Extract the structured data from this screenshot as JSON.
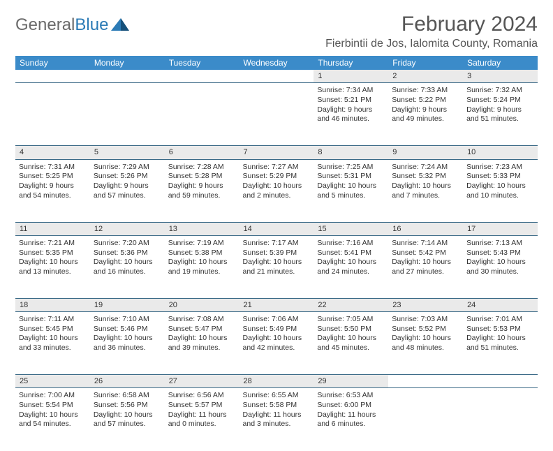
{
  "logo": {
    "word1": "General",
    "word2": "Blue"
  },
  "title": "February 2024",
  "location": "Fierbintii de Jos, Ialomita County, Romania",
  "colors": {
    "header_bg": "#3b8bc9",
    "header_text": "#ffffff",
    "daynum_bg": "#eaeaea",
    "rule": "#3b6a87",
    "logo_gray": "#6a6a6a",
    "logo_blue": "#2c7bb6"
  },
  "weekdays": [
    "Sunday",
    "Monday",
    "Tuesday",
    "Wednesday",
    "Thursday",
    "Friday",
    "Saturday"
  ],
  "grid": [
    [
      null,
      null,
      null,
      null,
      {
        "n": "1",
        "sr": "7:34 AM",
        "ss": "5:21 PM",
        "dl": "9 hours and 46 minutes."
      },
      {
        "n": "2",
        "sr": "7:33 AM",
        "ss": "5:22 PM",
        "dl": "9 hours and 49 minutes."
      },
      {
        "n": "3",
        "sr": "7:32 AM",
        "ss": "5:24 PM",
        "dl": "9 hours and 51 minutes."
      }
    ],
    [
      {
        "n": "4",
        "sr": "7:31 AM",
        "ss": "5:25 PM",
        "dl": "9 hours and 54 minutes."
      },
      {
        "n": "5",
        "sr": "7:29 AM",
        "ss": "5:26 PM",
        "dl": "9 hours and 57 minutes."
      },
      {
        "n": "6",
        "sr": "7:28 AM",
        "ss": "5:28 PM",
        "dl": "9 hours and 59 minutes."
      },
      {
        "n": "7",
        "sr": "7:27 AM",
        "ss": "5:29 PM",
        "dl": "10 hours and 2 minutes."
      },
      {
        "n": "8",
        "sr": "7:25 AM",
        "ss": "5:31 PM",
        "dl": "10 hours and 5 minutes."
      },
      {
        "n": "9",
        "sr": "7:24 AM",
        "ss": "5:32 PM",
        "dl": "10 hours and 7 minutes."
      },
      {
        "n": "10",
        "sr": "7:23 AM",
        "ss": "5:33 PM",
        "dl": "10 hours and 10 minutes."
      }
    ],
    [
      {
        "n": "11",
        "sr": "7:21 AM",
        "ss": "5:35 PM",
        "dl": "10 hours and 13 minutes."
      },
      {
        "n": "12",
        "sr": "7:20 AM",
        "ss": "5:36 PM",
        "dl": "10 hours and 16 minutes."
      },
      {
        "n": "13",
        "sr": "7:19 AM",
        "ss": "5:38 PM",
        "dl": "10 hours and 19 minutes."
      },
      {
        "n": "14",
        "sr": "7:17 AM",
        "ss": "5:39 PM",
        "dl": "10 hours and 21 minutes."
      },
      {
        "n": "15",
        "sr": "7:16 AM",
        "ss": "5:41 PM",
        "dl": "10 hours and 24 minutes."
      },
      {
        "n": "16",
        "sr": "7:14 AM",
        "ss": "5:42 PM",
        "dl": "10 hours and 27 minutes."
      },
      {
        "n": "17",
        "sr": "7:13 AM",
        "ss": "5:43 PM",
        "dl": "10 hours and 30 minutes."
      }
    ],
    [
      {
        "n": "18",
        "sr": "7:11 AM",
        "ss": "5:45 PM",
        "dl": "10 hours and 33 minutes."
      },
      {
        "n": "19",
        "sr": "7:10 AM",
        "ss": "5:46 PM",
        "dl": "10 hours and 36 minutes."
      },
      {
        "n": "20",
        "sr": "7:08 AM",
        "ss": "5:47 PM",
        "dl": "10 hours and 39 minutes."
      },
      {
        "n": "21",
        "sr": "7:06 AM",
        "ss": "5:49 PM",
        "dl": "10 hours and 42 minutes."
      },
      {
        "n": "22",
        "sr": "7:05 AM",
        "ss": "5:50 PM",
        "dl": "10 hours and 45 minutes."
      },
      {
        "n": "23",
        "sr": "7:03 AM",
        "ss": "5:52 PM",
        "dl": "10 hours and 48 minutes."
      },
      {
        "n": "24",
        "sr": "7:01 AM",
        "ss": "5:53 PM",
        "dl": "10 hours and 51 minutes."
      }
    ],
    [
      {
        "n": "25",
        "sr": "7:00 AM",
        "ss": "5:54 PM",
        "dl": "10 hours and 54 minutes."
      },
      {
        "n": "26",
        "sr": "6:58 AM",
        "ss": "5:56 PM",
        "dl": "10 hours and 57 minutes."
      },
      {
        "n": "27",
        "sr": "6:56 AM",
        "ss": "5:57 PM",
        "dl": "11 hours and 0 minutes."
      },
      {
        "n": "28",
        "sr": "6:55 AM",
        "ss": "5:58 PM",
        "dl": "11 hours and 3 minutes."
      },
      {
        "n": "29",
        "sr": "6:53 AM",
        "ss": "6:00 PM",
        "dl": "11 hours and 6 minutes."
      },
      null,
      null
    ]
  ],
  "labels": {
    "sunrise": "Sunrise:",
    "sunset": "Sunset:",
    "daylight": "Daylight:"
  }
}
